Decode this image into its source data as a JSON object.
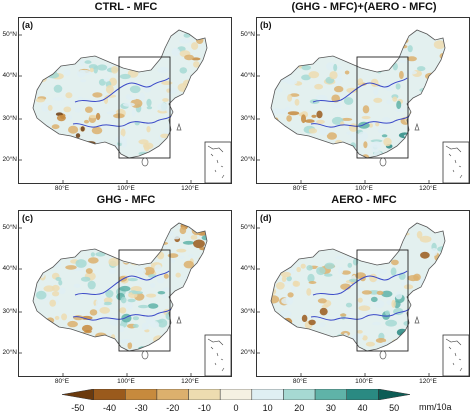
{
  "panels": [
    {
      "id": "a",
      "title": "CTRL - MFC",
      "label": "(a)"
    },
    {
      "id": "b",
      "title": "(GHG - MFC)+(AERO - MFC)",
      "label": "(b)"
    },
    {
      "id": "c",
      "title": "GHG - MFC",
      "label": "(c)"
    },
    {
      "id": "d",
      "title": "AERO - MFC",
      "label": "(d)"
    }
  ],
  "axes": {
    "lat_ticks": [
      "50°N",
      "40°N",
      "30°N",
      "20°N"
    ],
    "lon_ticks": [
      "80°E",
      "100°E",
      "120°E"
    ]
  },
  "colorbar": {
    "ticks": [
      "-50",
      "-40",
      "-30",
      "-20",
      "-10",
      "0",
      "10",
      "20",
      "30",
      "40",
      "50"
    ],
    "unit": "mm/10a",
    "colors": [
      "#6b3a0e",
      "#9a5a1c",
      "#c78a3d",
      "#dcb06d",
      "#eddcb0",
      "#f5f1e2",
      "#dfeff3",
      "#a6d9d3",
      "#5fb3a8",
      "#2a8a82",
      "#0d5c55"
    ]
  },
  "map": {
    "land_color": "#e3f0ef",
    "border_color": "#555555",
    "river_color": "#3a49c8",
    "box_color": "#222222"
  }
}
